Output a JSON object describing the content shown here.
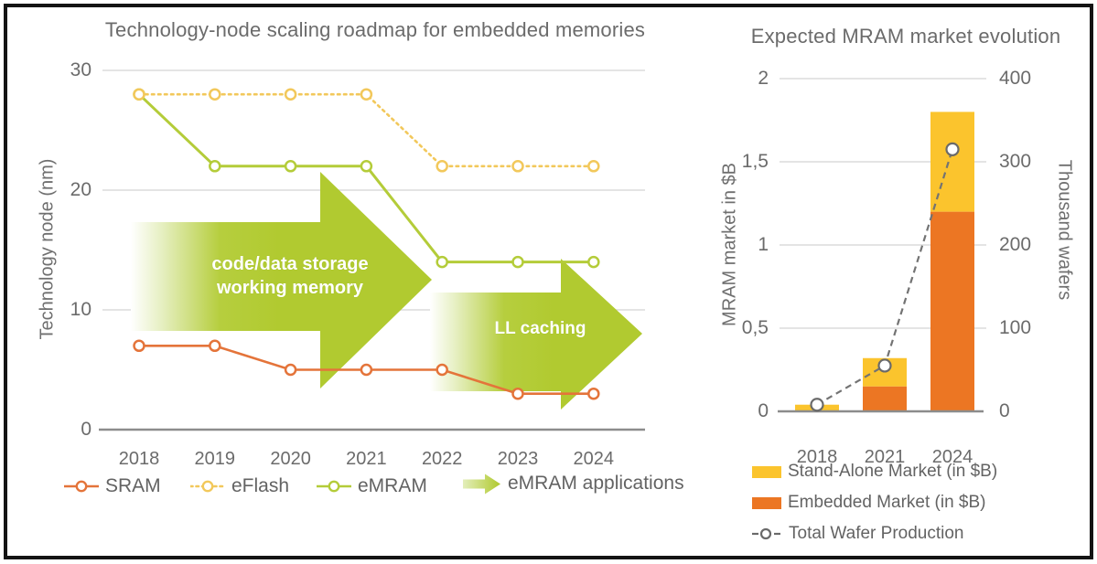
{
  "frame": {
    "border_color": "#141414",
    "background": "#ffffff"
  },
  "chart_data": [
    {
      "type": "line",
      "title": "Technology-node scaling roadmap for embedded memories",
      "ylabel": "Technology node (nm)",
      "x": [
        "2018",
        "2019",
        "2020",
        "2021",
        "2022",
        "2023",
        "2024"
      ],
      "yticks": [
        30,
        20,
        10,
        0
      ],
      "ylim": [
        0,
        30
      ],
      "grid": true,
      "legend_position": "bottom",
      "series": [
        {
          "name": "SRAM",
          "color": "#E4743A",
          "line_style": "solid",
          "values": [
            7,
            7,
            5,
            5,
            5,
            3,
            3
          ]
        },
        {
          "name": "eFlash",
          "color": "#F2C85B",
          "line_style": "dotted",
          "values": [
            28,
            28,
            28,
            28,
            22,
            22,
            22
          ]
        },
        {
          "name": "eMRAM",
          "color": "#B4CC39",
          "line_style": "solid",
          "values": [
            28,
            22,
            22,
            22,
            14,
            14,
            14
          ]
        }
      ],
      "annotations": [
        {
          "text": "code/data storage\nworking memory",
          "arrow_span": "2018 to 2022"
        },
        {
          "text": "LL caching",
          "arrow_span": "2022 to 2024"
        }
      ],
      "arrow_legend_label": "eMRAM applications",
      "arrow_color": "#B4CC39"
    },
    {
      "type": "bar+line",
      "title": "Expected MRAM market evolution",
      "ylabel_left": "MRAM market in $B",
      "ylabel_right": "Thousand wafers",
      "categories": [
        "2018",
        "2021",
        "2024"
      ],
      "yticks_left": [
        "2",
        "1,5",
        "1",
        "0,5",
        "0"
      ],
      "yticks_right": [
        "400",
        "300",
        "200",
        "100",
        "0"
      ],
      "ylim_left": [
        0,
        2
      ],
      "ylim_right": [
        0,
        400
      ],
      "grid": true,
      "legend_position": "bottom",
      "series": [
        {
          "name": "Stand-Alone Market (in $B)",
          "type": "bar",
          "axis": "left",
          "color": "#FBC42D",
          "values": [
            0.04,
            0.17,
            0.6
          ]
        },
        {
          "name": "Embedded Market (in $B)",
          "type": "bar",
          "axis": "left",
          "color": "#EC7623",
          "values": [
            0,
            0.15,
            1.2
          ]
        },
        {
          "name": "Total Wafer Production",
          "type": "line",
          "axis": "right",
          "color": "#6E6E6E",
          "line_style": "dashed",
          "values": [
            8,
            55,
            315
          ]
        }
      ]
    }
  ]
}
